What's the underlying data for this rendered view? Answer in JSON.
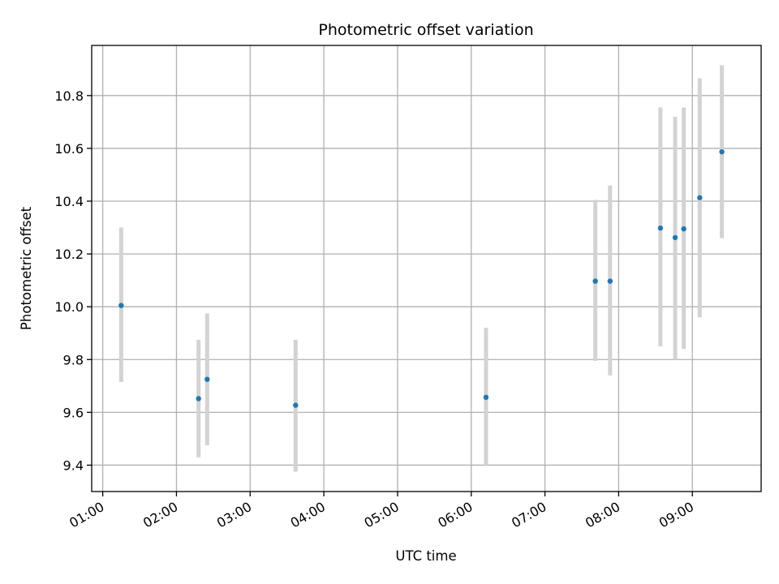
{
  "chart_data": {
    "type": "scatter",
    "title": "Photometric offset variation",
    "xlabel": "UTC time",
    "ylabel": "Photometric offset",
    "xlim": [
      "00:51",
      "09:56"
    ],
    "ylim": [
      9.3,
      10.99
    ],
    "x_ticks": [
      "01:00",
      "02:00",
      "03:00",
      "04:00",
      "05:00",
      "06:00",
      "07:00",
      "08:00",
      "09:00"
    ],
    "y_ticks": [
      9.4,
      9.6,
      9.8,
      10.0,
      10.2,
      10.4,
      10.6,
      10.8
    ],
    "y_tick_labels": [
      "9.4",
      "9.6",
      "9.8",
      "10.0",
      "10.2",
      "10.4",
      "10.6",
      "10.8"
    ],
    "grid": true,
    "colors": {
      "point": "#1f77b4",
      "errorbar": "#d3d3d3"
    },
    "points": [
      {
        "x": "01:15",
        "y": 10.005,
        "ylow": 9.715,
        "yhigh": 10.3
      },
      {
        "x": "02:18",
        "y": 9.652,
        "ylow": 9.43,
        "yhigh": 9.875
      },
      {
        "x": "02:25",
        "y": 9.725,
        "ylow": 9.475,
        "yhigh": 9.975
      },
      {
        "x": "03:37",
        "y": 9.627,
        "ylow": 9.375,
        "yhigh": 9.875
      },
      {
        "x": "06:12",
        "y": 9.657,
        "ylow": 9.4,
        "yhigh": 9.92
      },
      {
        "x": "07:41",
        "y": 10.097,
        "ylow": 9.795,
        "yhigh": 10.405
      },
      {
        "x": "07:53",
        "y": 10.097,
        "ylow": 9.74,
        "yhigh": 10.46
      },
      {
        "x": "08:34",
        "y": 10.298,
        "ylow": 9.85,
        "yhigh": 10.755
      },
      {
        "x": "08:46",
        "y": 10.262,
        "ylow": 9.8,
        "yhigh": 10.72
      },
      {
        "x": "08:53",
        "y": 10.295,
        "ylow": 9.84,
        "yhigh": 10.755
      },
      {
        "x": "09:06",
        "y": 10.413,
        "ylow": 9.96,
        "yhigh": 10.865
      },
      {
        "x": "09:24",
        "y": 10.587,
        "ylow": 10.26,
        "yhigh": 10.915
      }
    ]
  }
}
